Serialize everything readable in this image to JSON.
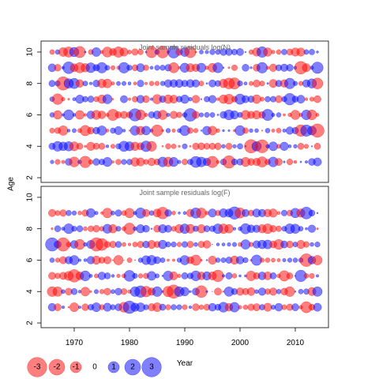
{
  "chart_data": [
    {
      "type": "scatter",
      "title": "Joint sample residuals log(N)",
      "ylabel": "Age",
      "xlim": [
        1964,
        2016
      ],
      "ylim": [
        1.7,
        10.7
      ],
      "xticks": [
        1970,
        1980,
        1990,
        2000,
        2010
      ],
      "yticks": [
        2,
        4,
        6,
        8,
        10
      ],
      "x_years": [
        1966,
        2014
      ],
      "ages": [
        3,
        4,
        5,
        6,
        7,
        8,
        9,
        10
      ],
      "encoding": "bubble size = |residual|, red = negative, blue = positive",
      "residuals": [],
      "grid": false
    },
    {
      "type": "scatter",
      "title": "Joint sample residuals log(F)",
      "xlabel": "Year",
      "xlim": [
        1964,
        2016
      ],
      "ylim": [
        1.7,
        10.7
      ],
      "xticks": [
        1970,
        1980,
        1990,
        2000,
        2010
      ],
      "yticks": [
        2,
        4,
        6,
        8,
        10
      ],
      "x_years": [
        1966,
        2014
      ],
      "ages": [
        3,
        4,
        5,
        6,
        7,
        8,
        9
      ],
      "encoding": "bubble size = |residual|, red = negative, blue = positive",
      "residuals": [],
      "grid": false
    }
  ],
  "shared": {
    "ylabel": "Age",
    "xlabel": "Year"
  },
  "legend": {
    "values": [
      -3,
      -2,
      -1,
      0,
      1,
      2,
      3
    ],
    "labels": [
      "-3",
      "-2",
      "-1",
      "0",
      "1",
      "2",
      "3"
    ]
  },
  "colors": {
    "negative": "#ff0000",
    "positive": "#0000ff",
    "alpha": 0.5
  }
}
